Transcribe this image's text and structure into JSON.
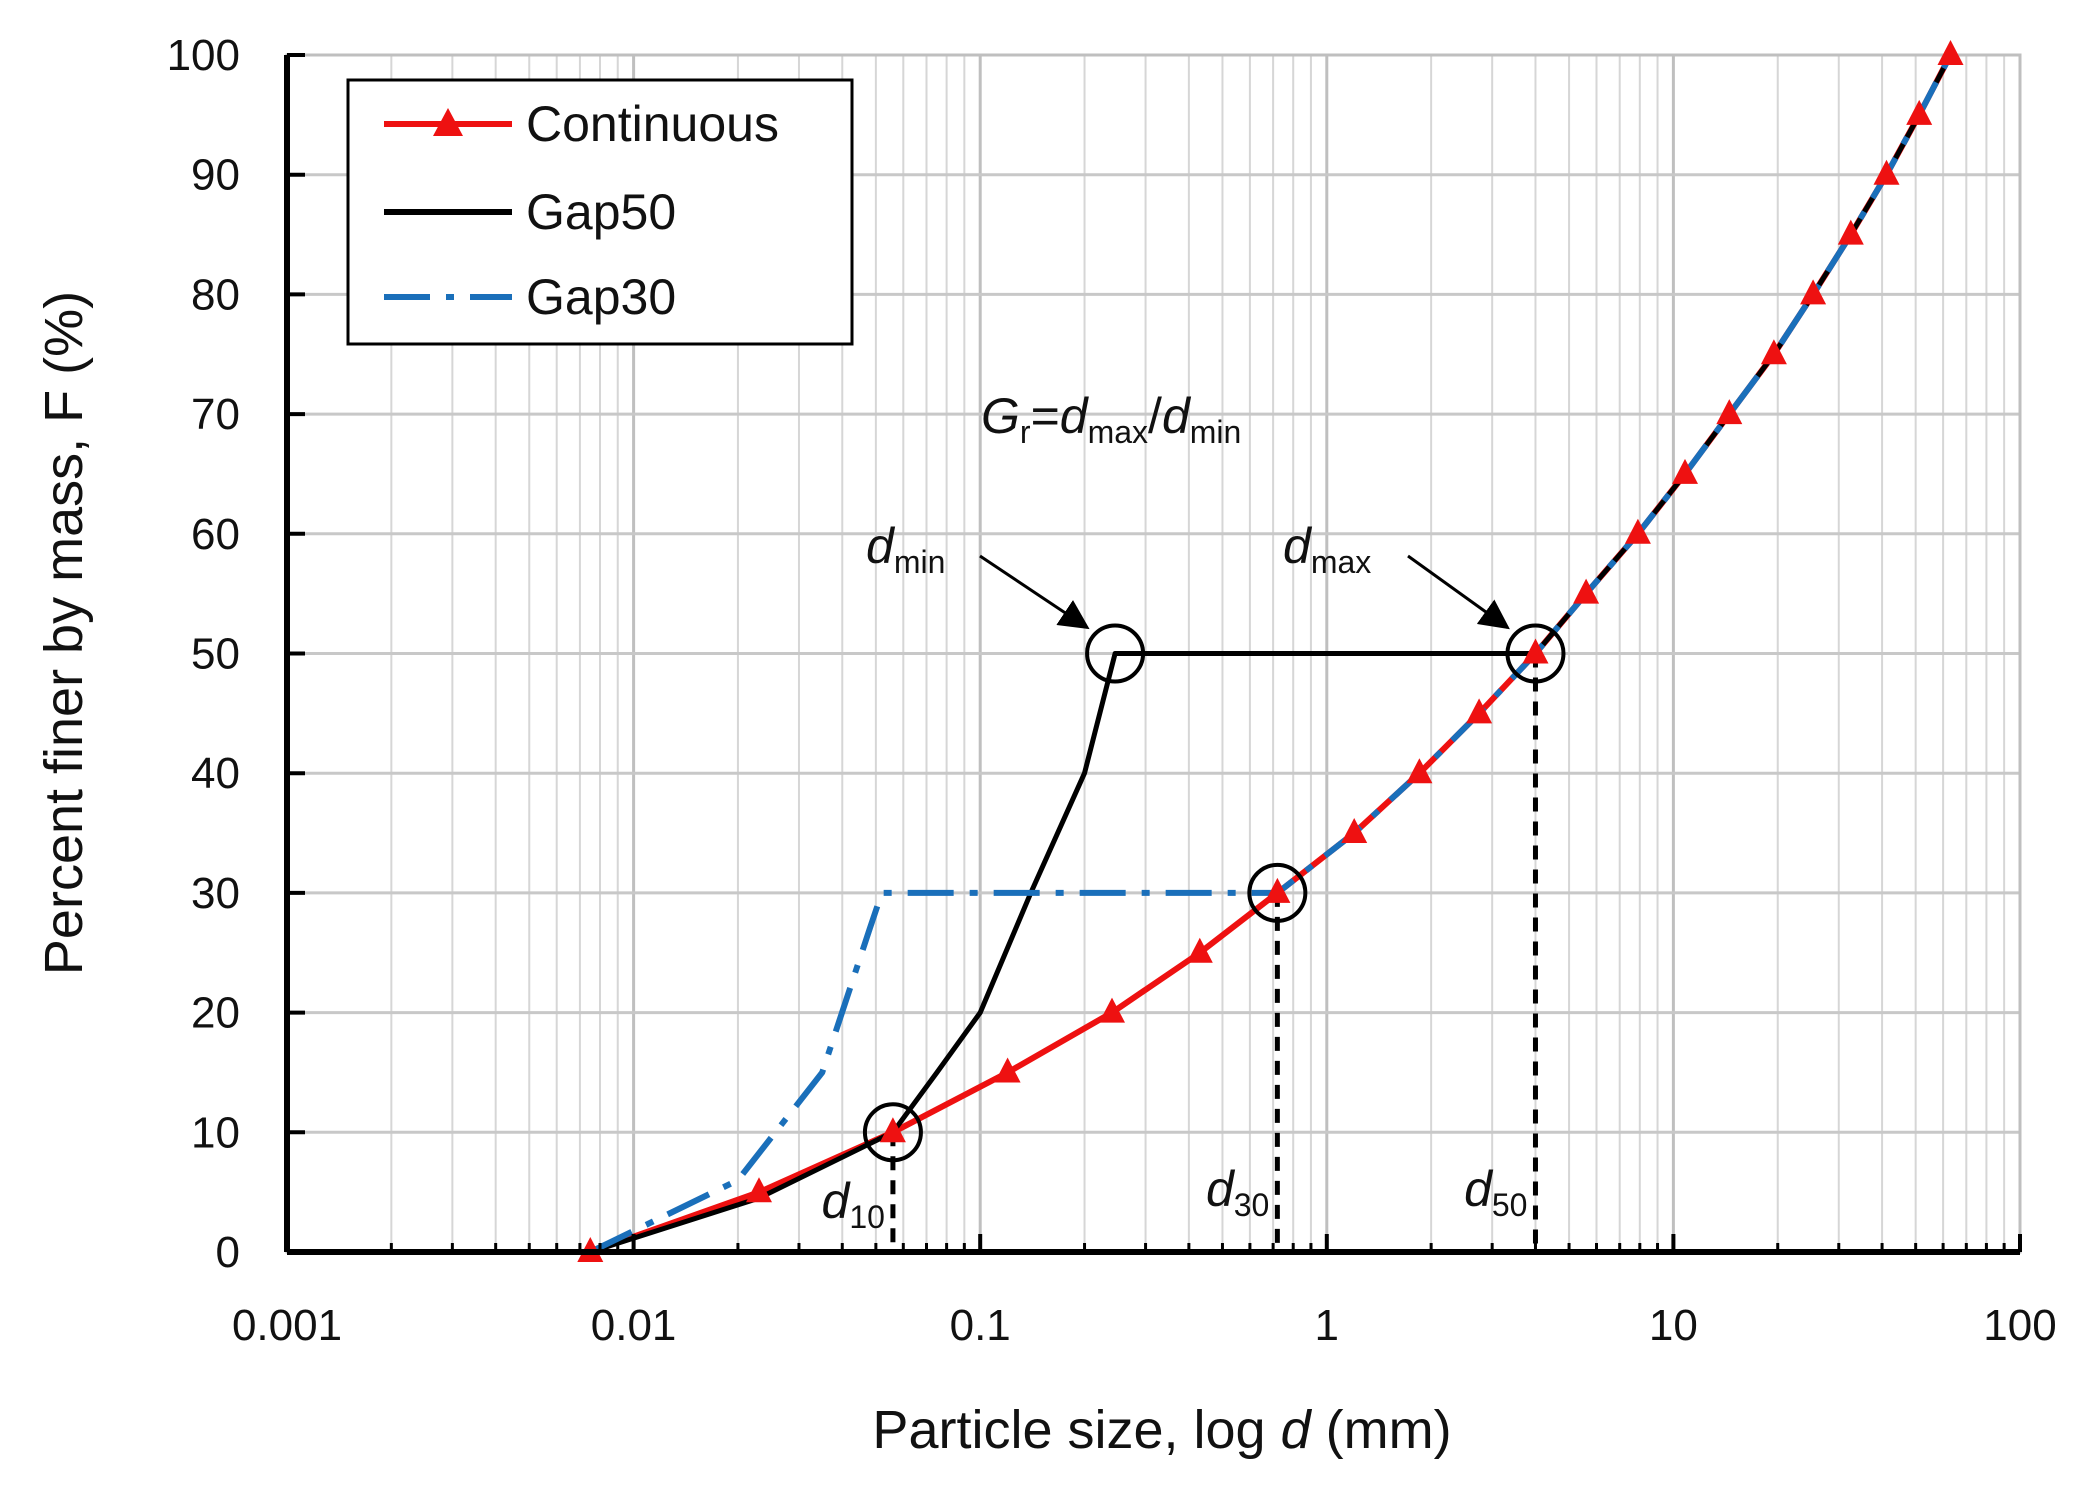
{
  "chart_data": {
    "type": "line",
    "xscale": "log",
    "xlim": [
      0.001,
      100
    ],
    "ylim": [
      0,
      100
    ],
    "grid": true,
    "xlabel": {
      "prefix": "Particle size, log ",
      "italic": "d",
      "suffix": " (mm)"
    },
    "ylabel": "Percent finer by mass, F (%)",
    "x_ticks": [
      {
        "value": 0.001,
        "label": "0.001"
      },
      {
        "value": 0.01,
        "label": "0.01"
      },
      {
        "value": 0.1,
        "label": "0.1"
      },
      {
        "value": 1,
        "label": "1"
      },
      {
        "value": 10,
        "label": "10"
      },
      {
        "value": 100,
        "label": "100"
      }
    ],
    "y_ticks": [
      {
        "value": 0,
        "label": "0"
      },
      {
        "value": 10,
        "label": "10"
      },
      {
        "value": 20,
        "label": "20"
      },
      {
        "value": 30,
        "label": "30"
      },
      {
        "value": 40,
        "label": "40"
      },
      {
        "value": 50,
        "label": "50"
      },
      {
        "value": 60,
        "label": "60"
      },
      {
        "value": 70,
        "label": "70"
      },
      {
        "value": 80,
        "label": "80"
      },
      {
        "value": 90,
        "label": "90"
      },
      {
        "value": 100,
        "label": "100"
      }
    ],
    "legend": {
      "position": "top-left",
      "entries": [
        {
          "name": "Continuous",
          "color": "#ee1111",
          "style": "solid-triangle"
        },
        {
          "name": "Gap50",
          "color": "#000000",
          "style": "solid"
        },
        {
          "name": "Gap30",
          "color": "#1a6fba",
          "style": "dash-dot"
        }
      ]
    },
    "series": [
      {
        "name": "Continuous",
        "color": "#ee1111",
        "marker": "triangle",
        "points": [
          [
            0.0075,
            0
          ],
          [
            0.023,
            5
          ],
          [
            0.056,
            10
          ],
          [
            0.12,
            15
          ],
          [
            0.24,
            20
          ],
          [
            0.43,
            25
          ],
          [
            0.72,
            30
          ],
          [
            1.2,
            35
          ],
          [
            1.85,
            40
          ],
          [
            2.75,
            45
          ],
          [
            4.0,
            50
          ],
          [
            5.6,
            55
          ],
          [
            7.9,
            60
          ],
          [
            10.8,
            65
          ],
          [
            14.5,
            70
          ],
          [
            19.5,
            75
          ],
          [
            25.3,
            80
          ],
          [
            32.5,
            85
          ],
          [
            41.2,
            90
          ],
          [
            51.2,
            95
          ],
          [
            63.0,
            100
          ]
        ]
      },
      {
        "name": "Gap50",
        "color": "#000000",
        "style": "solid",
        "points": [
          [
            0.0075,
            0
          ],
          [
            0.023,
            4.5
          ],
          [
            0.056,
            10
          ],
          [
            0.075,
            15
          ],
          [
            0.1,
            20
          ],
          [
            0.14,
            30
          ],
          [
            0.2,
            40
          ],
          [
            0.245,
            50
          ],
          [
            4.0,
            50
          ],
          [
            5.6,
            55
          ],
          [
            7.9,
            60
          ],
          [
            10.8,
            65
          ],
          [
            14.5,
            70
          ],
          [
            19.5,
            75
          ],
          [
            25.3,
            80
          ],
          [
            32.5,
            85
          ],
          [
            41.2,
            90
          ],
          [
            51.2,
            95
          ],
          [
            63.0,
            100
          ]
        ]
      },
      {
        "name": "Gap30",
        "color": "#1a6fba",
        "style": "dash-dot",
        "points": [
          [
            0.0075,
            0
          ],
          [
            0.02,
            6
          ],
          [
            0.035,
            15
          ],
          [
            0.048,
            27
          ],
          [
            0.052,
            30
          ],
          [
            0.72,
            30
          ],
          [
            1.2,
            35
          ],
          [
            1.85,
            40
          ],
          [
            2.75,
            45
          ],
          [
            4.0,
            50
          ],
          [
            5.6,
            55
          ],
          [
            7.9,
            60
          ],
          [
            10.8,
            65
          ],
          [
            14.5,
            70
          ],
          [
            19.5,
            75
          ],
          [
            25.3,
            80
          ],
          [
            32.5,
            85
          ],
          [
            41.2,
            90
          ],
          [
            51.2,
            95
          ],
          [
            63.0,
            100
          ]
        ]
      }
    ],
    "circles": [
      {
        "name": "d-min-circle",
        "x": 0.245,
        "y": 50
      },
      {
        "name": "d-max-circle",
        "x": 4.0,
        "y": 50
      },
      {
        "name": "d30-circle",
        "x": 0.72,
        "y": 30
      },
      {
        "name": "d10-circle",
        "x": 0.056,
        "y": 10
      }
    ],
    "reference_lines": [
      {
        "name": "d10-dashed-line",
        "x": 0.056,
        "y_top": 10
      },
      {
        "name": "d30-dashed-line",
        "x": 0.72,
        "y_top": 30
      },
      {
        "name": "d50-dashed-line",
        "x": 4.0,
        "y_top": 50
      }
    ],
    "annotations": {
      "formula": {
        "G": "G",
        "r": "r",
        "eq": "=",
        "d1": "d",
        "max": "max",
        "slash": "/",
        "d2": "d",
        "min": "min"
      },
      "dmin": {
        "d": "d",
        "sub": "min",
        "target_x": 0.245,
        "target_y": 50
      },
      "dmax": {
        "d": "d",
        "sub": "max",
        "target_x": 4.0,
        "target_y": 50
      },
      "d10": {
        "d": "d",
        "sub": "10",
        "x": 0.056
      },
      "d30": {
        "d": "d",
        "sub": "30",
        "x": 0.72
      },
      "d50": {
        "d": "d",
        "sub": "50",
        "x": 4.0
      }
    }
  }
}
